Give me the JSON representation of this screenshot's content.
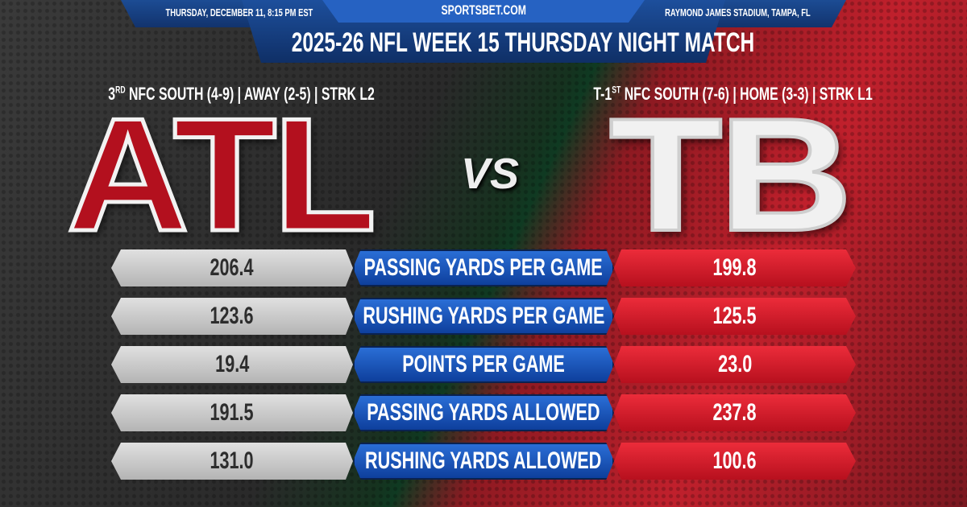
{
  "header": {
    "site": "SPORTSBET.COM",
    "date": "THURSDAY, DECEMBER 11, 8:15 PM EST",
    "venue": "RAYMOND JAMES STADIUM, TAMPA, FL",
    "title": "2025-26 NFL WEEK 15 THURSDAY NIGHT MATCH"
  },
  "away": {
    "abbr": "ATL",
    "rank": "3",
    "rank_suffix": "RD",
    "record": " NFC SOUTH (4-9) | AWAY (2-5) | STRK L2",
    "color": "#b3101e"
  },
  "home": {
    "abbr": "TB",
    "rank": "T-1",
    "rank_suffix": "ST",
    "record": " NFC SOUTH (7-6) | HOME (3-3) | STRK L1",
    "color": "#d81e2c"
  },
  "vs": "VS",
  "stats": [
    {
      "label": "PASSING YARDS PER GAME",
      "away": "206.4",
      "home": "199.8"
    },
    {
      "label": "RUSHING YARDS PER GAME",
      "away": "123.6",
      "home": "125.5"
    },
    {
      "label": "POINTS PER GAME",
      "away": "19.4",
      "home": "23.0"
    },
    {
      "label": "PASSING YARDS ALLOWED",
      "away": "191.5",
      "home": "237.8"
    },
    {
      "label": "RUSHING YARDS ALLOWED",
      "away": "131.0",
      "home": "100.6"
    }
  ]
}
